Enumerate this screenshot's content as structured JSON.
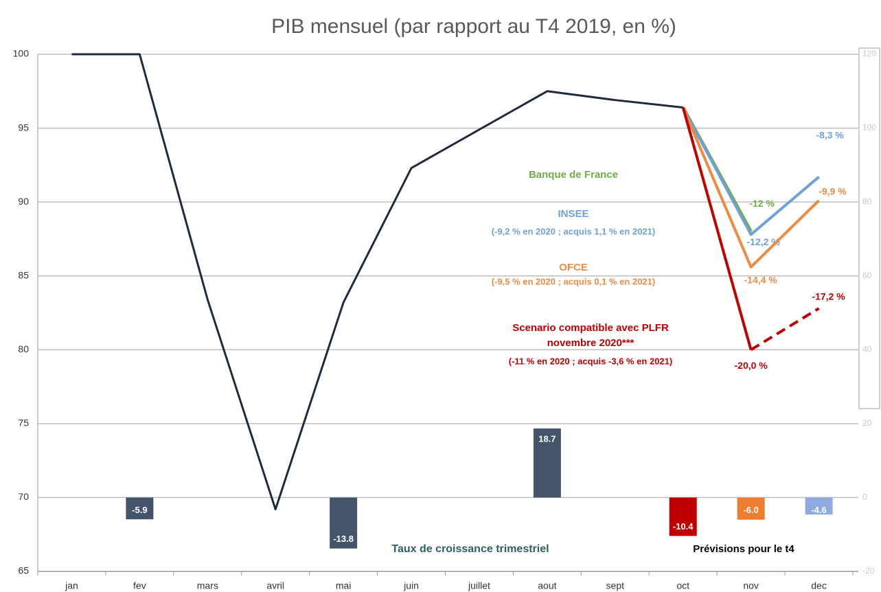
{
  "chart_data": {
    "type": "line",
    "title": "PIB mensuel (par rapport au T4 2019, en %)",
    "categories": [
      "jan",
      "fev",
      "mars",
      "avril",
      "mai",
      "juin",
      "juillet",
      "aout",
      "sept",
      "oct",
      "nov",
      "dec"
    ],
    "ylim": [
      65,
      100
    ],
    "yticks": [
      65,
      70,
      75,
      80,
      85,
      90,
      95,
      100
    ],
    "y2lim": [
      -20,
      120
    ],
    "y2ticks": [
      -20,
      0,
      20,
      40,
      60,
      80,
      100,
      120
    ],
    "grid": true,
    "series": [
      {
        "color": "#1f2a3c",
        "values": [
          100,
          100,
          83.4,
          69.2,
          83.2,
          92.3,
          94.9,
          97.5,
          96.9,
          96.4,
          null,
          null
        ]
      },
      {
        "name": "Banque de France",
        "color": "#70ad47",
        "values": [
          null,
          null,
          null,
          null,
          null,
          null,
          null,
          null,
          null,
          96.4,
          88,
          null
        ],
        "point_labels": [
          "-12 %"
        ]
      },
      {
        "name": "INSEE",
        "note": "(-9,2 % en 2020 ; acquis 1,1 % en 2021)",
        "color": "#6fa0d6",
        "values": [
          null,
          null,
          null,
          null,
          null,
          null,
          null,
          null,
          null,
          96.4,
          87.8,
          91.7
        ],
        "point_labels": [
          "-12,2 %",
          "-8,3 %"
        ]
      },
      {
        "name": "OFCE",
        "note": "(-9,5 % en 2020 ; acquis 0,1 % en 2021)",
        "color": "#ed8b45",
        "values": [
          null,
          null,
          null,
          null,
          null,
          null,
          null,
          null,
          null,
          96.4,
          85.6,
          90.1
        ],
        "point_labels": [
          "-14,4 %",
          "-9,9 %"
        ]
      },
      {
        "label_lines": [
          "Scenario compatible avec PLFR",
          "novembre 2020***"
        ],
        "note": "(-11 % en 2020 ; acquis -3,6 % en 2021)",
        "color": "#c00000",
        "dash_last_segment": true,
        "values": [
          null,
          null,
          null,
          null,
          null,
          null,
          null,
          null,
          null,
          96.4,
          80,
          82.8
        ],
        "point_labels": [
          "-20,0 %",
          "-17,2 %"
        ]
      }
    ],
    "bars": {
      "type": "bar",
      "axis": "y2",
      "label": "Taux de croissance trimestriel",
      "forecast_label": "Prévisions pour le t4",
      "values": [
        null,
        -5.9,
        null,
        null,
        -13.8,
        null,
        null,
        18.7,
        null,
        -10.4,
        -6.0,
        -4.6
      ],
      "value_labels": [
        null,
        "-5.9",
        null,
        null,
        "-13.8",
        null,
        null,
        "18.7",
        null,
        "-10.4",
        "-6.0",
        "-4.6"
      ],
      "colors": [
        null,
        "#44546a",
        null,
        null,
        "#44546a",
        null,
        null,
        "#44546a",
        null,
        "#c00000",
        "#ed7d31",
        "#8faadc"
      ]
    }
  }
}
